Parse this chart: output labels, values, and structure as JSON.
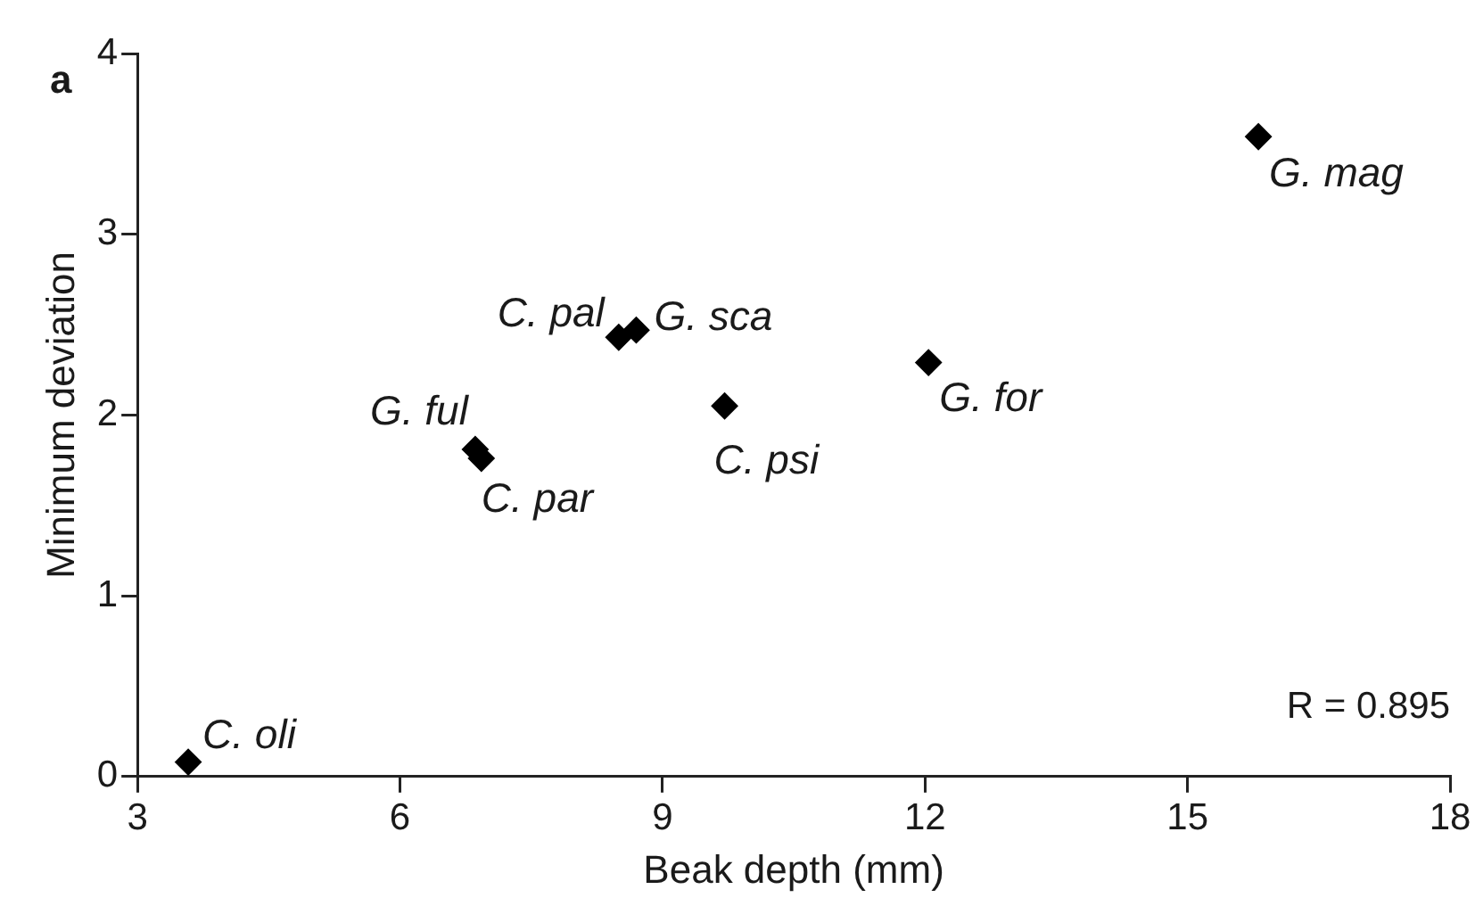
{
  "chart_data": {
    "type": "scatter",
    "xlabel": "Beak depth (mm)",
    "ylabel": "Minimum deviation",
    "x": [
      3.58,
      6.86,
      6.93,
      8.5,
      8.7,
      9.71,
      12.04,
      15.81
    ],
    "values": [
      0.08,
      1.81,
      1.76,
      2.43,
      2.47,
      2.05,
      2.29,
      3.54
    ],
    "color": "#000000",
    "marker": "diamond",
    "xlim": [
      3,
      18
    ],
    "xticks": [
      3,
      6,
      9,
      12,
      15,
      18
    ],
    "ylim": [
      0,
      4
    ],
    "yticks": [
      0,
      1,
      2,
      3,
      4
    ],
    "grid": false,
    "legend": false,
    "annotations": [
      "a",
      "R = 0.895",
      {
        "text": "C. oli",
        "x": 3.58,
        "y": 0.08
      },
      {
        "text": "G. ful",
        "x": 6.86,
        "y": 1.81
      },
      {
        "text": "C. par",
        "x": 6.93,
        "y": 1.76
      },
      {
        "text": "C. pal",
        "x": 8.5,
        "y": 2.43
      },
      {
        "text": "G. sca",
        "x": 8.7,
        "y": 2.47
      },
      {
        "text": "C. psi",
        "x": 9.71,
        "y": 2.05
      },
      {
        "text": "G. for",
        "x": 12.04,
        "y": 2.29
      },
      {
        "text": "G. mag",
        "x": 15.81,
        "y": 3.54
      }
    ]
  }
}
